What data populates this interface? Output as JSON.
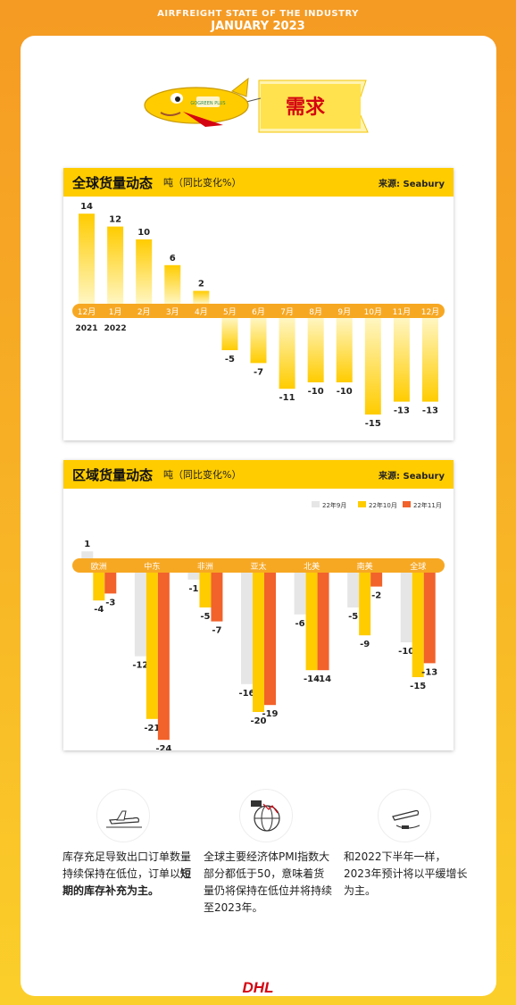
{
  "header": {
    "line1": "AIRFREIGHT STATE OF THE INDUSTRY",
    "line2": "JANUARY 2023"
  },
  "banner": {
    "label": "需求",
    "plane_text": "GOGREEN PLUS"
  },
  "chart1": {
    "title": "全球货量动态",
    "unit": "吨（同比变化%）",
    "source": "来源: Seabury"
  },
  "chart2": {
    "title": "区域货量动态",
    "unit": "吨（同比变化%）",
    "source": "来源: Seabury"
  },
  "chart_data": [
    {
      "type": "bar",
      "title": "全球货量动态",
      "categories": [
        "12月",
        "1月",
        "2月",
        "3月",
        "4月",
        "5月",
        "6月",
        "7月",
        "8月",
        "9月",
        "10月",
        "11月",
        "12月"
      ],
      "year_labels": [
        "2021",
        "2022"
      ],
      "values": [
        14,
        12,
        10,
        6,
        2,
        -5,
        -7,
        -11,
        -10,
        -10,
        -15,
        -13,
        -13
      ],
      "ylim": [
        -15,
        14
      ],
      "colors": [
        "#ffcc00"
      ]
    },
    {
      "type": "bar",
      "title": "区域货量动态",
      "categories": [
        "欧洲",
        "中东",
        "非洲",
        "亚太",
        "北美",
        "南美",
        "全球"
      ],
      "series": [
        {
          "name": "22年9月",
          "values": [
            1,
            -12,
            -1,
            -16,
            -6,
            -5,
            -10
          ],
          "color": "#e6e6e6"
        },
        {
          "name": "22年10月",
          "values": [
            -4,
            -21,
            -5,
            -20,
            -14,
            -9,
            -15
          ],
          "color": "#ffcc00"
        },
        {
          "name": "22年11月",
          "values": [
            -3,
            -24,
            -7,
            -19,
            -14,
            -2,
            -13
          ],
          "color": "#f2622b"
        }
      ],
      "ylim": [
        -24,
        1
      ]
    }
  ],
  "bullets": [
    {
      "icon": "cargo-plane-icon",
      "text_a": "库存充足导致出口订单数量持续保持在低位，订单以",
      "text_b": "短期的库存补充为主。"
    },
    {
      "icon": "globe-pmi-icon",
      "text_a": "全球主要经济体PMI指数大部分都低于50，意味着货量仍将保持在低位并将持续至2023年。",
      "text_b": ""
    },
    {
      "icon": "plane-takeoff-icon",
      "text_a": "和2022下半年一样，2023年预计将以平缓增长为主。",
      "text_b": ""
    }
  ],
  "footer": {
    "logo": "DHL"
  }
}
